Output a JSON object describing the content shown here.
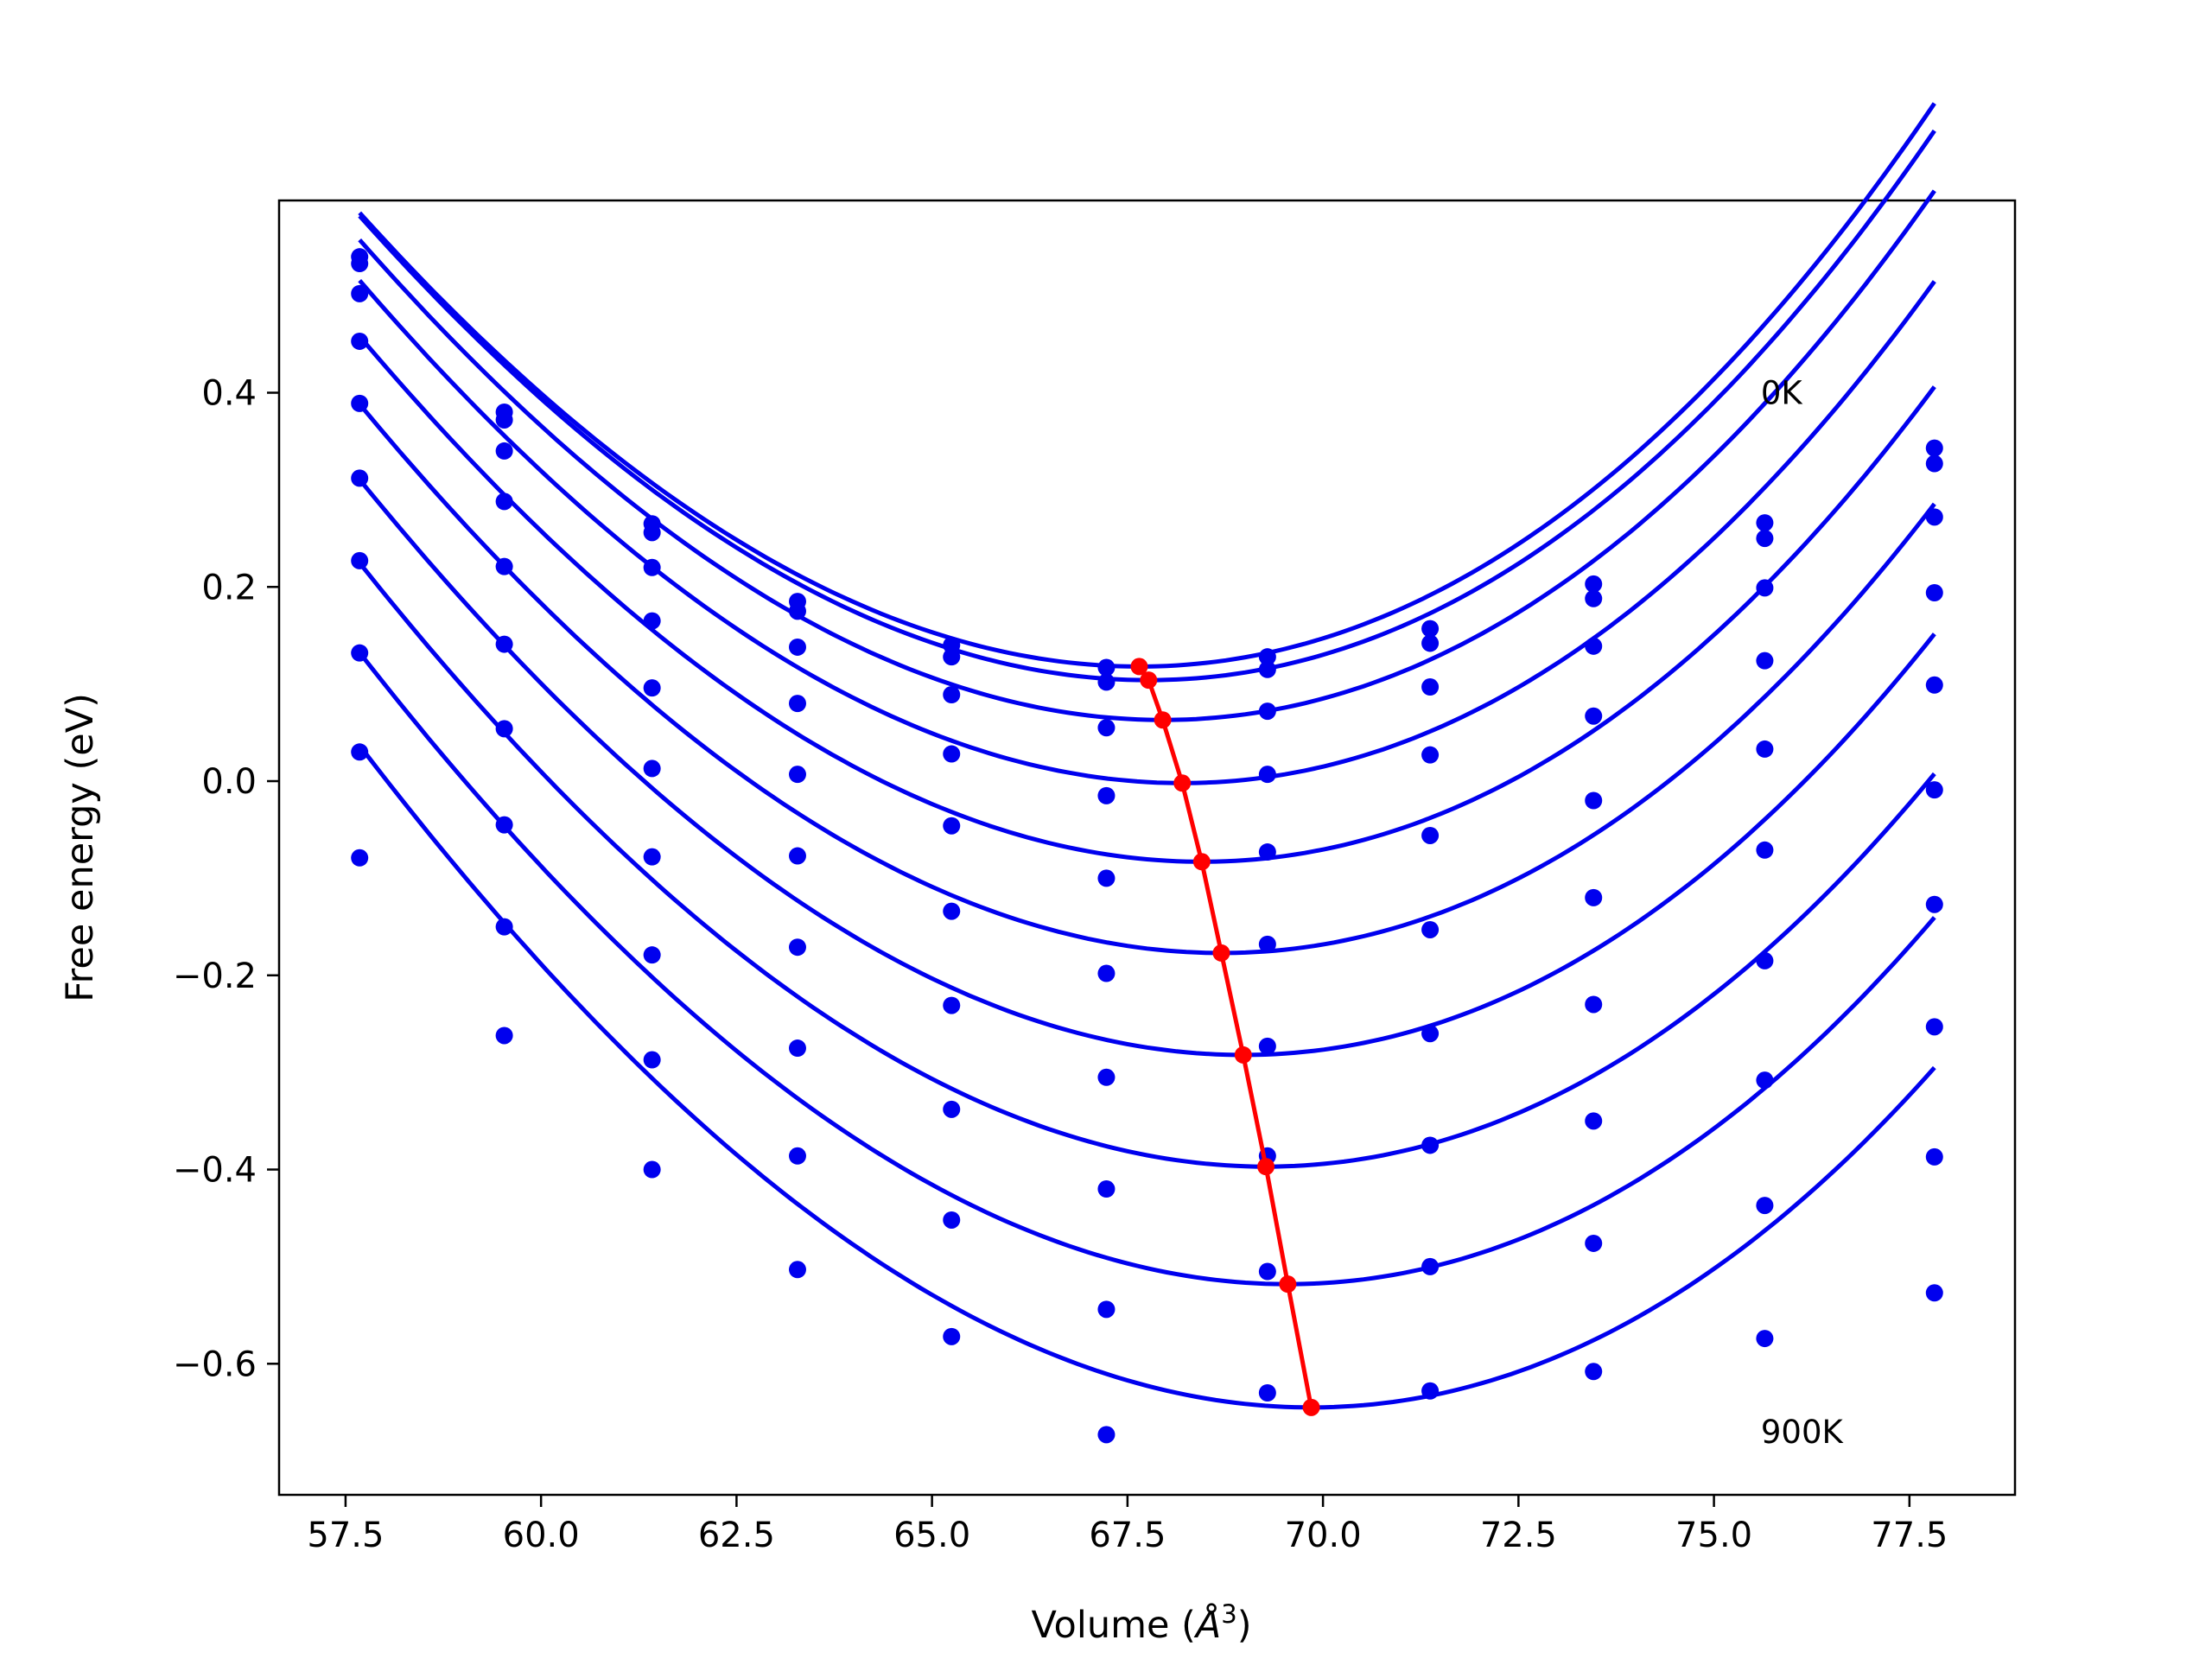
{
  "chart_data": {
    "type": "line",
    "title": "",
    "xlabel": "Volume (",
    "xlabel_sym": "Å",
    "xlabel_sup": "3",
    "xlabel_close": ")",
    "ylabel": "Free energy (eV)",
    "xlim": [
      56.65,
      78.85
    ],
    "ylim": [
      -0.735,
      0.598
    ],
    "xticks": [
      57.5,
      60.0,
      62.5,
      65.0,
      67.5,
      70.0,
      72.5,
      75.0,
      77.5
    ],
    "xtick_labels": [
      "57.5",
      "60.0",
      "62.5",
      "65.0",
      "67.5",
      "70.0",
      "72.5",
      "75.0",
      "77.5"
    ],
    "yticks": [
      -0.6,
      -0.4,
      -0.2,
      0.0,
      0.2,
      0.4
    ],
    "ytick_labels": [
      "−0.6",
      "−0.4",
      "−0.2",
      "0.0",
      "0.2",
      "0.4"
    ],
    "annotations": [
      {
        "text": "0K",
        "x": 75.6,
        "y": 0.4
      },
      {
        "text": "900K",
        "x": 75.6,
        "y": -0.67
      }
    ],
    "colors": {
      "fit": "#0000ee",
      "points": "#0000ee",
      "minima": "#ff0000"
    },
    "x": [
      57.68,
      59.53,
      61.42,
      63.28,
      65.25,
      67.23,
      69.29,
      71.37,
      73.46,
      75.65,
      77.82
    ],
    "series": [
      {
        "values": [
          0.54,
          0.38,
          0.265,
          0.185,
          0.14,
          0.117,
          0.128,
          0.157,
          0.203,
          0.266,
          0.343
        ],
        "fit": {
          "vmin": 67.65,
          "fmin": 0.118,
          "a": 0.00515,
          "b": 4.5e-05
        }
      },
      {
        "values": [
          0.533,
          0.372,
          0.256,
          0.175,
          0.128,
          0.102,
          0.115,
          0.142,
          0.188,
          0.25,
          0.327
        ],
        "fit": {
          "vmin": 67.77,
          "fmin": 0.104,
          "a": 0.00515,
          "b": 4.5e-05
        }
      },
      {
        "values": [
          0.502,
          0.34,
          0.22,
          0.138,
          0.089,
          0.055,
          0.072,
          0.097,
          0.139,
          0.199,
          0.272
        ],
        "fit": {
          "vmin": 67.95,
          "fmin": 0.063,
          "a": 0.00515,
          "b": 4.5e-05
        }
      },
      {
        "values": [
          0.453,
          0.288,
          0.165,
          0.08,
          0.028,
          -0.015,
          0.007,
          0.027,
          0.067,
          0.124,
          0.194
        ],
        "fit": {
          "vmin": 68.2,
          "fmin": -0.002,
          "a": 0.00515,
          "b": 4.5e-05
        }
      },
      {
        "values": [
          0.389,
          0.221,
          0.096,
          0.007,
          -0.046,
          -0.1,
          -0.073,
          -0.056,
          -0.02,
          0.033,
          0.099
        ],
        "fit": {
          "vmin": 68.45,
          "fmin": -0.083,
          "a": 0.00515,
          "b": 4.5e-05
        }
      },
      {
        "values": [
          0.312,
          0.141,
          0.013,
          -0.077,
          -0.134,
          -0.198,
          -0.168,
          -0.153,
          -0.12,
          -0.071,
          -0.009
        ],
        "fit": {
          "vmin": 68.7,
          "fmin": -0.177,
          "a": 0.00515,
          "b": 4.5e-05
        }
      },
      {
        "values": [
          0.227,
          0.054,
          -0.078,
          -0.171,
          -0.231,
          -0.305,
          -0.273,
          -0.26,
          -0.23,
          -0.185,
          -0.127
        ],
        "fit": {
          "vmin": 68.98,
          "fmin": -0.282,
          "a": 0.00515,
          "b": 4.5e-05
        }
      },
      {
        "values": [
          0.132,
          -0.045,
          -0.179,
          -0.275,
          -0.338,
          -0.42,
          -0.386,
          -0.375,
          -0.35,
          -0.308,
          -0.253
        ],
        "fit": {
          "vmin": 69.27,
          "fmin": -0.397,
          "a": 0.00515,
          "b": 4.5e-05
        }
      },
      {
        "values": [
          0.03,
          -0.15,
          -0.287,
          -0.386,
          -0.452,
          -0.544,
          -0.505,
          -0.5,
          -0.476,
          -0.437,
          -0.387
        ],
        "fit": {
          "vmin": 69.55,
          "fmin": -0.518,
          "a": 0.00515,
          "b": 4.5e-05
        }
      },
      {
        "values": [
          -0.079,
          -0.262,
          -0.4,
          -0.503,
          -0.572,
          -0.673,
          -0.63,
          -0.628,
          -0.608,
          -0.574,
          -0.527
        ],
        "fit": {
          "vmin": 69.85,
          "fmin": -0.645,
          "a": 0.00515,
          "b": 4.5e-05
        }
      }
    ],
    "minima_line": {
      "x": [
        67.65,
        67.77,
        67.95,
        68.2,
        68.45,
        68.7,
        68.98,
        69.27,
        69.55,
        69.85
      ],
      "y": [
        0.118,
        0.104,
        0.063,
        -0.002,
        -0.083,
        -0.177,
        -0.282,
        -0.397,
        -0.518,
        -0.645
      ]
    }
  }
}
